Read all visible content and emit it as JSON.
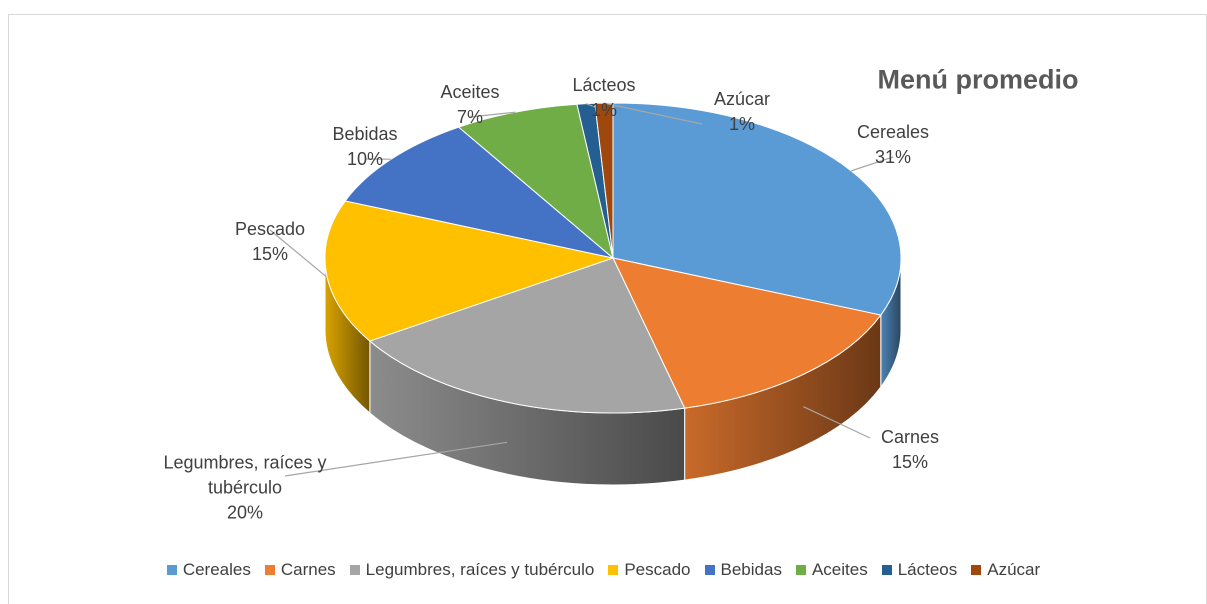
{
  "chart_data": {
    "type": "pie",
    "title": "Menú promedio",
    "categories": [
      "Cereales",
      "Carnes",
      "Legumbres, raíces y tubérculo",
      "Pescado",
      "Bebidas",
      "Aceites",
      "Lácteos",
      "Azúcar"
    ],
    "values": [
      31,
      15,
      20,
      15,
      10,
      7,
      1,
      1
    ],
    "value_labels": [
      "31%",
      "15%",
      "20%",
      "15%",
      "10%",
      "7%",
      "1%",
      "1%"
    ],
    "colors": [
      "#5b9bd5",
      "#ed7d31",
      "#a5a5a5",
      "#ffc000",
      "#4472c4",
      "#70ad47",
      "#255e91",
      "#9e480e"
    ],
    "legend": "bottom"
  }
}
